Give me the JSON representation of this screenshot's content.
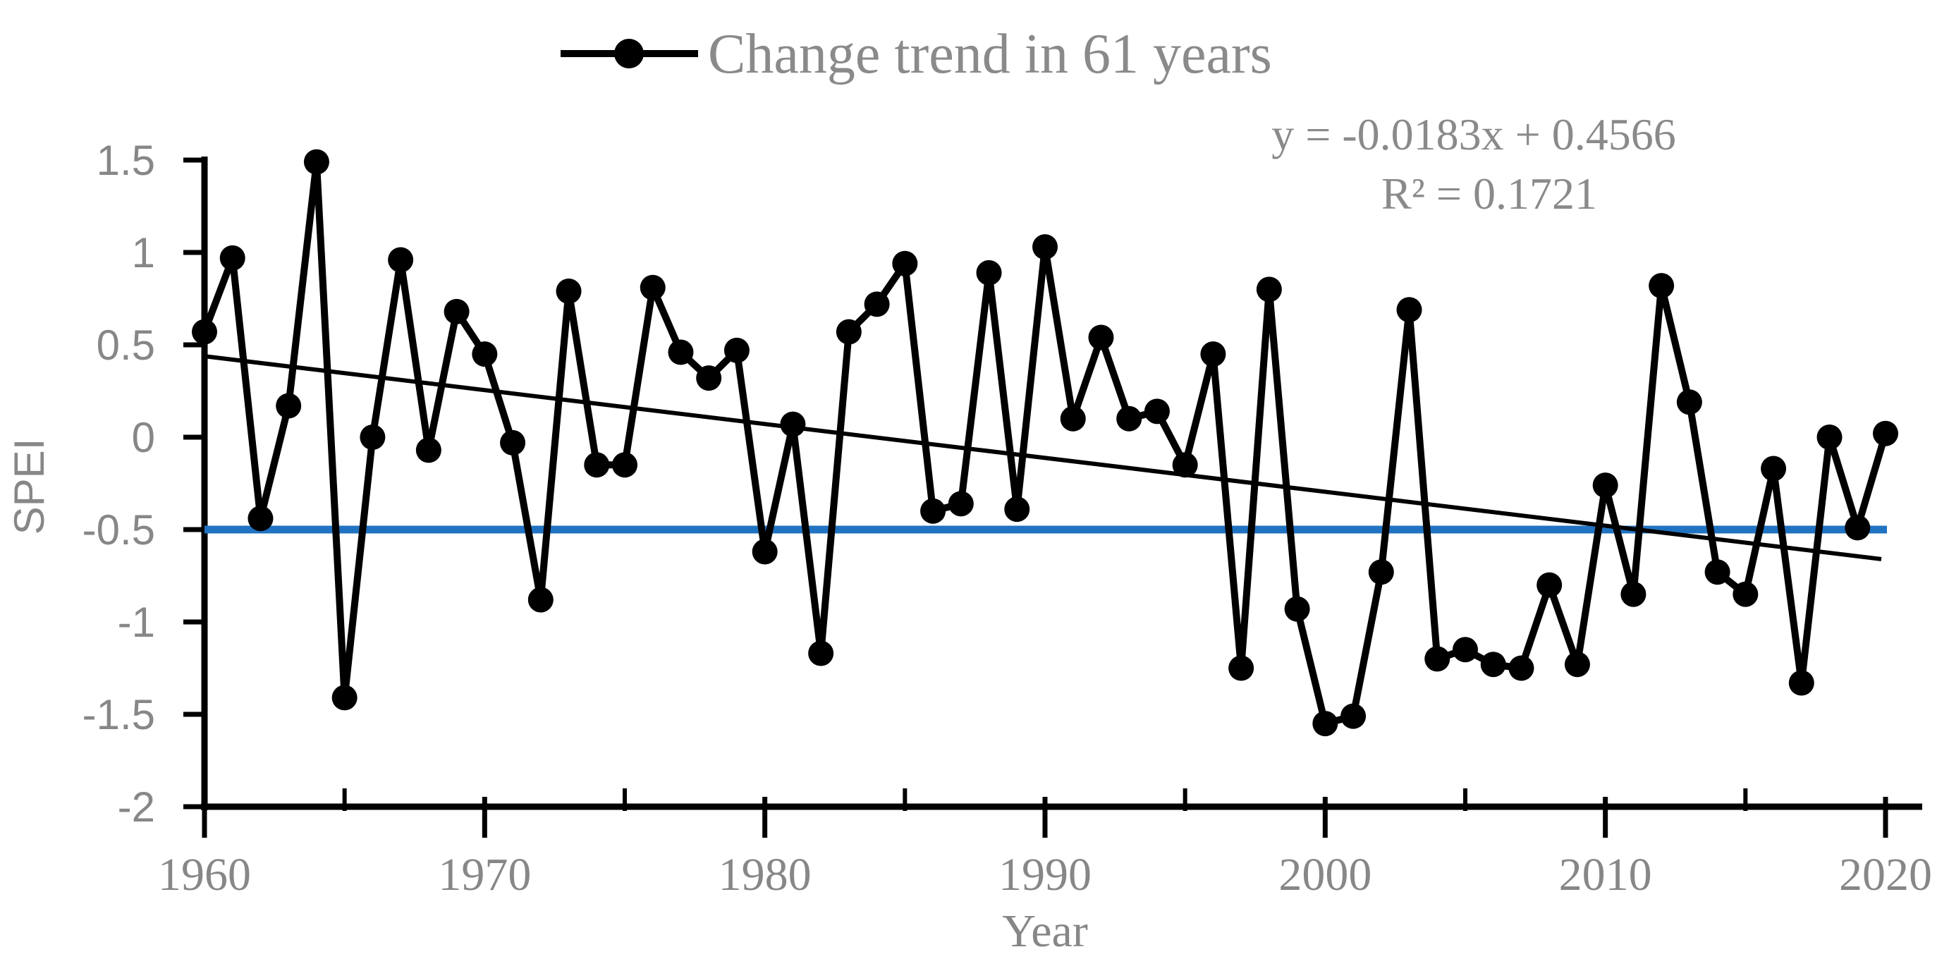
{
  "legend": {
    "label": "Change trend in 61 years"
  },
  "annotation": {
    "line1": "y = -0.0183x + 0.4566",
    "line2": "R² = 0.1721"
  },
  "chart_data": {
    "type": "line",
    "title": "Change trend in 61 years",
    "xlabel": "Year",
    "ylabel": "SPEI",
    "x": [
      1960,
      1961,
      1962,
      1963,
      1964,
      1965,
      1966,
      1967,
      1968,
      1969,
      1970,
      1971,
      1972,
      1973,
      1974,
      1975,
      1976,
      1977,
      1978,
      1979,
      1980,
      1981,
      1982,
      1983,
      1984,
      1985,
      1986,
      1987,
      1988,
      1989,
      1990,
      1991,
      1992,
      1993,
      1994,
      1995,
      1996,
      1997,
      1998,
      1999,
      2000,
      2001,
      2002,
      2003,
      2004,
      2005,
      2006,
      2007,
      2008,
      2009,
      2010,
      2011,
      2012,
      2013,
      2014,
      2015,
      2016,
      2017,
      2018,
      2019,
      2020
    ],
    "series": [
      {
        "name": "Change trend in 61 years",
        "values": [
          0.57,
          0.97,
          -0.44,
          0.17,
          1.49,
          -1.41,
          0.0,
          0.96,
          -0.07,
          0.68,
          0.45,
          -0.03,
          -0.88,
          0.79,
          -0.15,
          -0.15,
          0.81,
          0.46,
          0.32,
          0.47,
          -0.62,
          0.07,
          -1.17,
          0.57,
          0.72,
          0.94,
          -0.4,
          -0.36,
          0.89,
          -0.39,
          1.03,
          0.1,
          0.54,
          0.1,
          0.14,
          -0.15,
          0.45,
          -1.25,
          0.8,
          -0.93,
          -1.55,
          -1.51,
          -0.73,
          0.69,
          -1.2,
          -1.15,
          -1.23,
          -1.25,
          -0.8,
          -1.23,
          -0.26,
          -0.85,
          0.82,
          0.19,
          -0.73,
          -0.85,
          -0.17,
          -1.33,
          0.0,
          -0.49,
          0.02
        ]
      }
    ],
    "trendline": {
      "equation": "y = -0.0183x + 0.4566",
      "r_squared_label": "R² = 0.1721",
      "slope": -0.0183,
      "intercept": 0.4566,
      "r_squared": 0.1721
    },
    "reference_line": {
      "value": -0.5,
      "color": "#2173C2"
    },
    "xlim": [
      1960,
      2020
    ],
    "ylim": [
      -2,
      1.5
    ],
    "y_ticks": [
      1.5,
      1,
      0.5,
      0,
      -0.5,
      -1,
      -1.5,
      -2
    ],
    "y_tick_labels": [
      "1.5",
      "1",
      "0.5",
      "0",
      "-0.5",
      "-1",
      "-1.5",
      "-2"
    ],
    "x_ticks": [
      1960,
      1970,
      1980,
      1990,
      2000,
      2010,
      2020
    ],
    "x_tick_labels": [
      "1960",
      "1970",
      "1980",
      "1990",
      "2000",
      "2010",
      "2020"
    ],
    "x_minor_ticks": [
      1965,
      1975,
      1985,
      1995,
      2005,
      2015
    ],
    "grid": false,
    "legend_position": "top-center",
    "colors": {
      "series": "#000000",
      "trend": "#000000",
      "reference": "#2173C2",
      "text": "#8a8a8a",
      "axis": "#000000"
    }
  }
}
